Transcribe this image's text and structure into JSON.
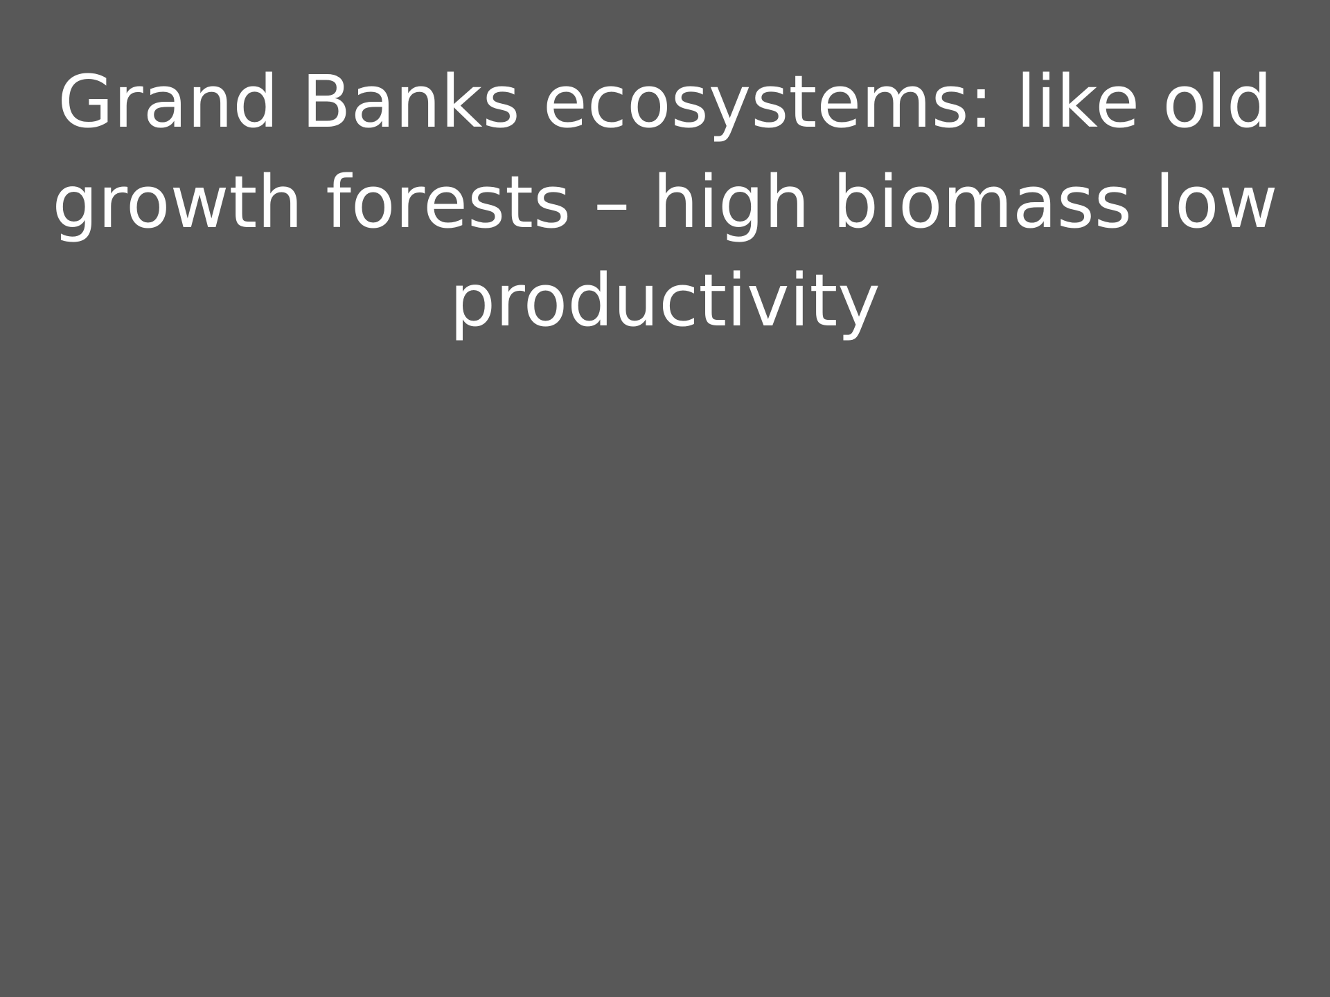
{
  "title_lines": [
    "Grand Banks ecosystems: like old",
    "growth forests – high biomass low",
    "productivity"
  ]
}
